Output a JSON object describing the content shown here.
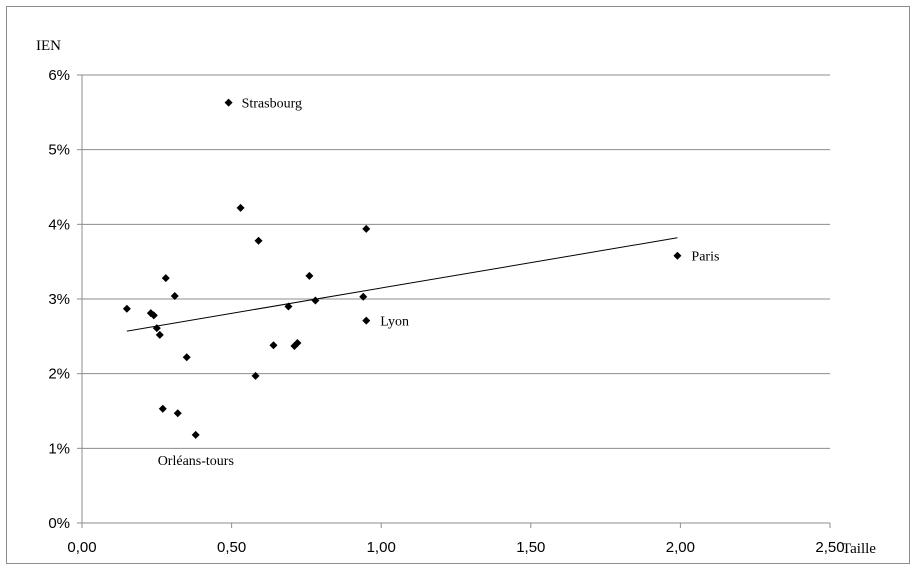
{
  "chart_data": {
    "type": "scatter",
    "title": "",
    "xlabel": "Taille",
    "ylabel": "IEN",
    "xlim": [
      0,
      2.5
    ],
    "ylim": [
      0,
      6
    ],
    "x_ticks": [
      "0,00",
      "0,50",
      "1,00",
      "1,50",
      "2,00",
      "2,50"
    ],
    "y_ticks": [
      "0%",
      "1%",
      "2%",
      "3%",
      "4%",
      "5%",
      "6%"
    ],
    "grid": "horizontal",
    "marker": "diamond",
    "marker_color": "#000000",
    "trendline": {
      "type": "linear",
      "x_start": 0.15,
      "y_start": 2.57,
      "x_end": 1.99,
      "y_end": 3.82
    },
    "points": [
      {
        "x": 0.49,
        "y": 5.63,
        "label": "Strasbourg"
      },
      {
        "x": 0.53,
        "y": 4.22,
        "label": ""
      },
      {
        "x": 0.59,
        "y": 3.78,
        "label": ""
      },
      {
        "x": 0.95,
        "y": 3.94,
        "label": ""
      },
      {
        "x": 1.99,
        "y": 3.58,
        "label": "Paris"
      },
      {
        "x": 0.15,
        "y": 2.87,
        "label": ""
      },
      {
        "x": 0.23,
        "y": 2.81,
        "label": ""
      },
      {
        "x": 0.24,
        "y": 2.78,
        "label": ""
      },
      {
        "x": 0.25,
        "y": 2.61,
        "label": ""
      },
      {
        "x": 0.26,
        "y": 2.52,
        "label": ""
      },
      {
        "x": 0.28,
        "y": 3.28,
        "label": ""
      },
      {
        "x": 0.31,
        "y": 3.04,
        "label": ""
      },
      {
        "x": 0.35,
        "y": 2.22,
        "label": ""
      },
      {
        "x": 0.27,
        "y": 1.53,
        "label": ""
      },
      {
        "x": 0.32,
        "y": 1.47,
        "label": ""
      },
      {
        "x": 0.38,
        "y": 1.18,
        "label": "Orléans-tours"
      },
      {
        "x": 0.58,
        "y": 1.97,
        "label": ""
      },
      {
        "x": 0.64,
        "y": 2.38,
        "label": ""
      },
      {
        "x": 0.69,
        "y": 2.9,
        "label": ""
      },
      {
        "x": 0.71,
        "y": 2.37,
        "label": ""
      },
      {
        "x": 0.72,
        "y": 2.41,
        "label": ""
      },
      {
        "x": 0.76,
        "y": 3.31,
        "label": ""
      },
      {
        "x": 0.78,
        "y": 2.98,
        "label": ""
      },
      {
        "x": 0.94,
        "y": 3.03,
        "label": ""
      },
      {
        "x": 0.95,
        "y": 2.71,
        "label": "Lyon"
      }
    ]
  }
}
